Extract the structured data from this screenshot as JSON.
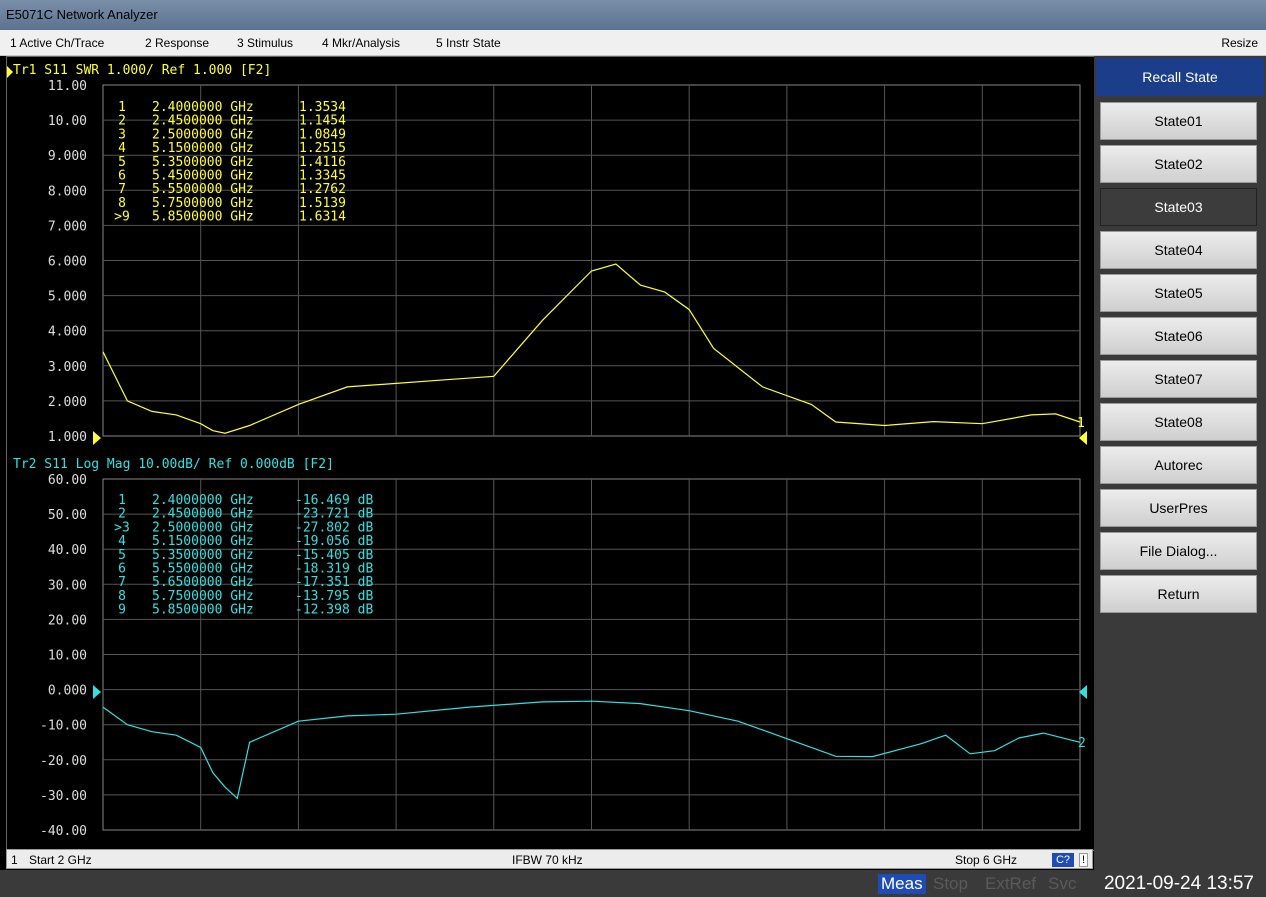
{
  "app": {
    "title": "E5071C Network Analyzer"
  },
  "menu": [
    "1 Active Ch/Trace",
    "2 Response",
    "3 Stimulus",
    "4 Mkr/Analysis",
    "5 Instr State"
  ],
  "menu_resize": "Resize",
  "trace1": {
    "header": "Tr1 S11 SWR 1.000/ Ref 1.000 [F2]",
    "tag": "Tr1",
    "color": "#ffff33",
    "yticks": [
      "11.00",
      "10.00",
      "9.000",
      "8.000",
      "7.000",
      "6.000",
      "5.000",
      "4.000",
      "3.000",
      "2.000",
      "1.000"
    ],
    "markers": [
      {
        "id": "1",
        "freq": "2.4000000 GHz",
        "val": "1.3534"
      },
      {
        "id": "2",
        "freq": "2.4500000 GHz",
        "val": "1.1454"
      },
      {
        "id": "3",
        "freq": "2.5000000 GHz",
        "val": "1.0849"
      },
      {
        "id": "4",
        "freq": "5.1500000 GHz",
        "val": "1.2515"
      },
      {
        "id": "5",
        "freq": "5.3500000 GHz",
        "val": "1.4116"
      },
      {
        "id": "6",
        "freq": "5.4500000 GHz",
        "val": "1.3345"
      },
      {
        "id": "7",
        "freq": "5.5500000 GHz",
        "val": "1.2762"
      },
      {
        "id": "8",
        "freq": "5.7500000 GHz",
        "val": "1.5139"
      },
      {
        "id": ">9",
        "freq": "5.8500000 GHz",
        "val": "1.6314"
      }
    ],
    "trace_end_label": "1"
  },
  "trace2": {
    "header": "Tr2 S11 Log Mag 10.00dB/ Ref 0.000dB [F2]",
    "color": "#33e0e0",
    "yticks": [
      "60.00",
      "50.00",
      "40.00",
      "30.00",
      "20.00",
      "10.00",
      "0.000",
      "-10.00",
      "-20.00",
      "-30.00",
      "-40.00"
    ],
    "markers": [
      {
        "id": "1",
        "freq": "2.4000000 GHz",
        "val": "-16.469 dB"
      },
      {
        "id": "2",
        "freq": "2.4500000 GHz",
        "val": "-23.721 dB"
      },
      {
        "id": ">3",
        "freq": "2.5000000 GHz",
        "val": "-27.802 dB"
      },
      {
        "id": "4",
        "freq": "5.1500000 GHz",
        "val": "-19.056 dB"
      },
      {
        "id": "5",
        "freq": "5.3500000 GHz",
        "val": "-15.405 dB"
      },
      {
        "id": "6",
        "freq": "5.5500000 GHz",
        "val": "-18.319 dB"
      },
      {
        "id": "7",
        "freq": "5.6500000 GHz",
        "val": "-17.351 dB"
      },
      {
        "id": "8",
        "freq": "5.7500000 GHz",
        "val": "-13.795 dB"
      },
      {
        "id": "9",
        "freq": "5.8500000 GHz",
        "val": "-12.398 dB"
      }
    ],
    "trace_end_label": "2"
  },
  "softkeys": {
    "header": "Recall State",
    "items": [
      "State01",
      "State02",
      "State03",
      "State04",
      "State05",
      "State06",
      "State07",
      "State08",
      "Autorec",
      "UserPres",
      "File Dialog...",
      "Return"
    ],
    "active": "State03"
  },
  "status": {
    "channel": "1",
    "start": "Start 2 GHz",
    "ifbw": "IFBW 70 kHz",
    "stop": "Stop 6 GHz",
    "cal": "C?",
    "excl": "!"
  },
  "bottom": {
    "meas": "Meas",
    "stop": "Stop",
    "extref": "ExtRef",
    "svc": "Svc",
    "datetime": "2021-09-24 13:57"
  },
  "chart_data": [
    {
      "type": "line",
      "title": "Tr1 S11 SWR 1.000/ Ref 1.000 [F2]",
      "x_range_ghz": [
        2,
        6
      ],
      "ylim": [
        1,
        11
      ],
      "series": [
        {
          "name": "Tr1 S11 SWR",
          "x": [
            2.0,
            2.1,
            2.2,
            2.3,
            2.4,
            2.45,
            2.5,
            2.6,
            2.8,
            3.0,
            3.2,
            3.4,
            3.6,
            3.8,
            4.0,
            4.1,
            4.2,
            4.3,
            4.4,
            4.5,
            4.7,
            4.9,
            5.0,
            5.2,
            5.4,
            5.6,
            5.8,
            5.9,
            6.0
          ],
          "y": [
            3.4,
            2.0,
            1.7,
            1.6,
            1.35,
            1.15,
            1.08,
            1.3,
            1.9,
            2.4,
            2.5,
            2.6,
            2.7,
            4.3,
            5.7,
            5.9,
            5.3,
            5.1,
            4.6,
            3.5,
            2.4,
            1.9,
            1.4,
            1.3,
            1.41,
            1.35,
            1.6,
            1.63,
            1.4
          ]
        }
      ],
      "grid": true
    },
    {
      "type": "line",
      "title": "Tr2 S11 Log Mag 10.00dB/ Ref 0.000dB [F2]",
      "x_range_ghz": [
        2,
        6
      ],
      "ylim": [
        -40,
        60
      ],
      "series": [
        {
          "name": "Tr2 S11 Log Mag",
          "x": [
            2.0,
            2.1,
            2.2,
            2.3,
            2.4,
            2.45,
            2.5,
            2.55,
            2.6,
            2.8,
            3.0,
            3.2,
            3.5,
            3.8,
            4.0,
            4.2,
            4.4,
            4.6,
            4.8,
            5.0,
            5.15,
            5.35,
            5.45,
            5.55,
            5.65,
            5.75,
            5.85,
            6.0
          ],
          "y": [
            -5,
            -10,
            -12,
            -13,
            -16.5,
            -23.7,
            -27.8,
            -31,
            -15,
            -9,
            -7.5,
            -7,
            -5,
            -3.5,
            -3.3,
            -4,
            -6,
            -9,
            -14,
            -19,
            -19.1,
            -15.4,
            -13,
            -18.3,
            -17.4,
            -13.8,
            -12.4,
            -15
          ]
        }
      ],
      "grid": true
    }
  ]
}
